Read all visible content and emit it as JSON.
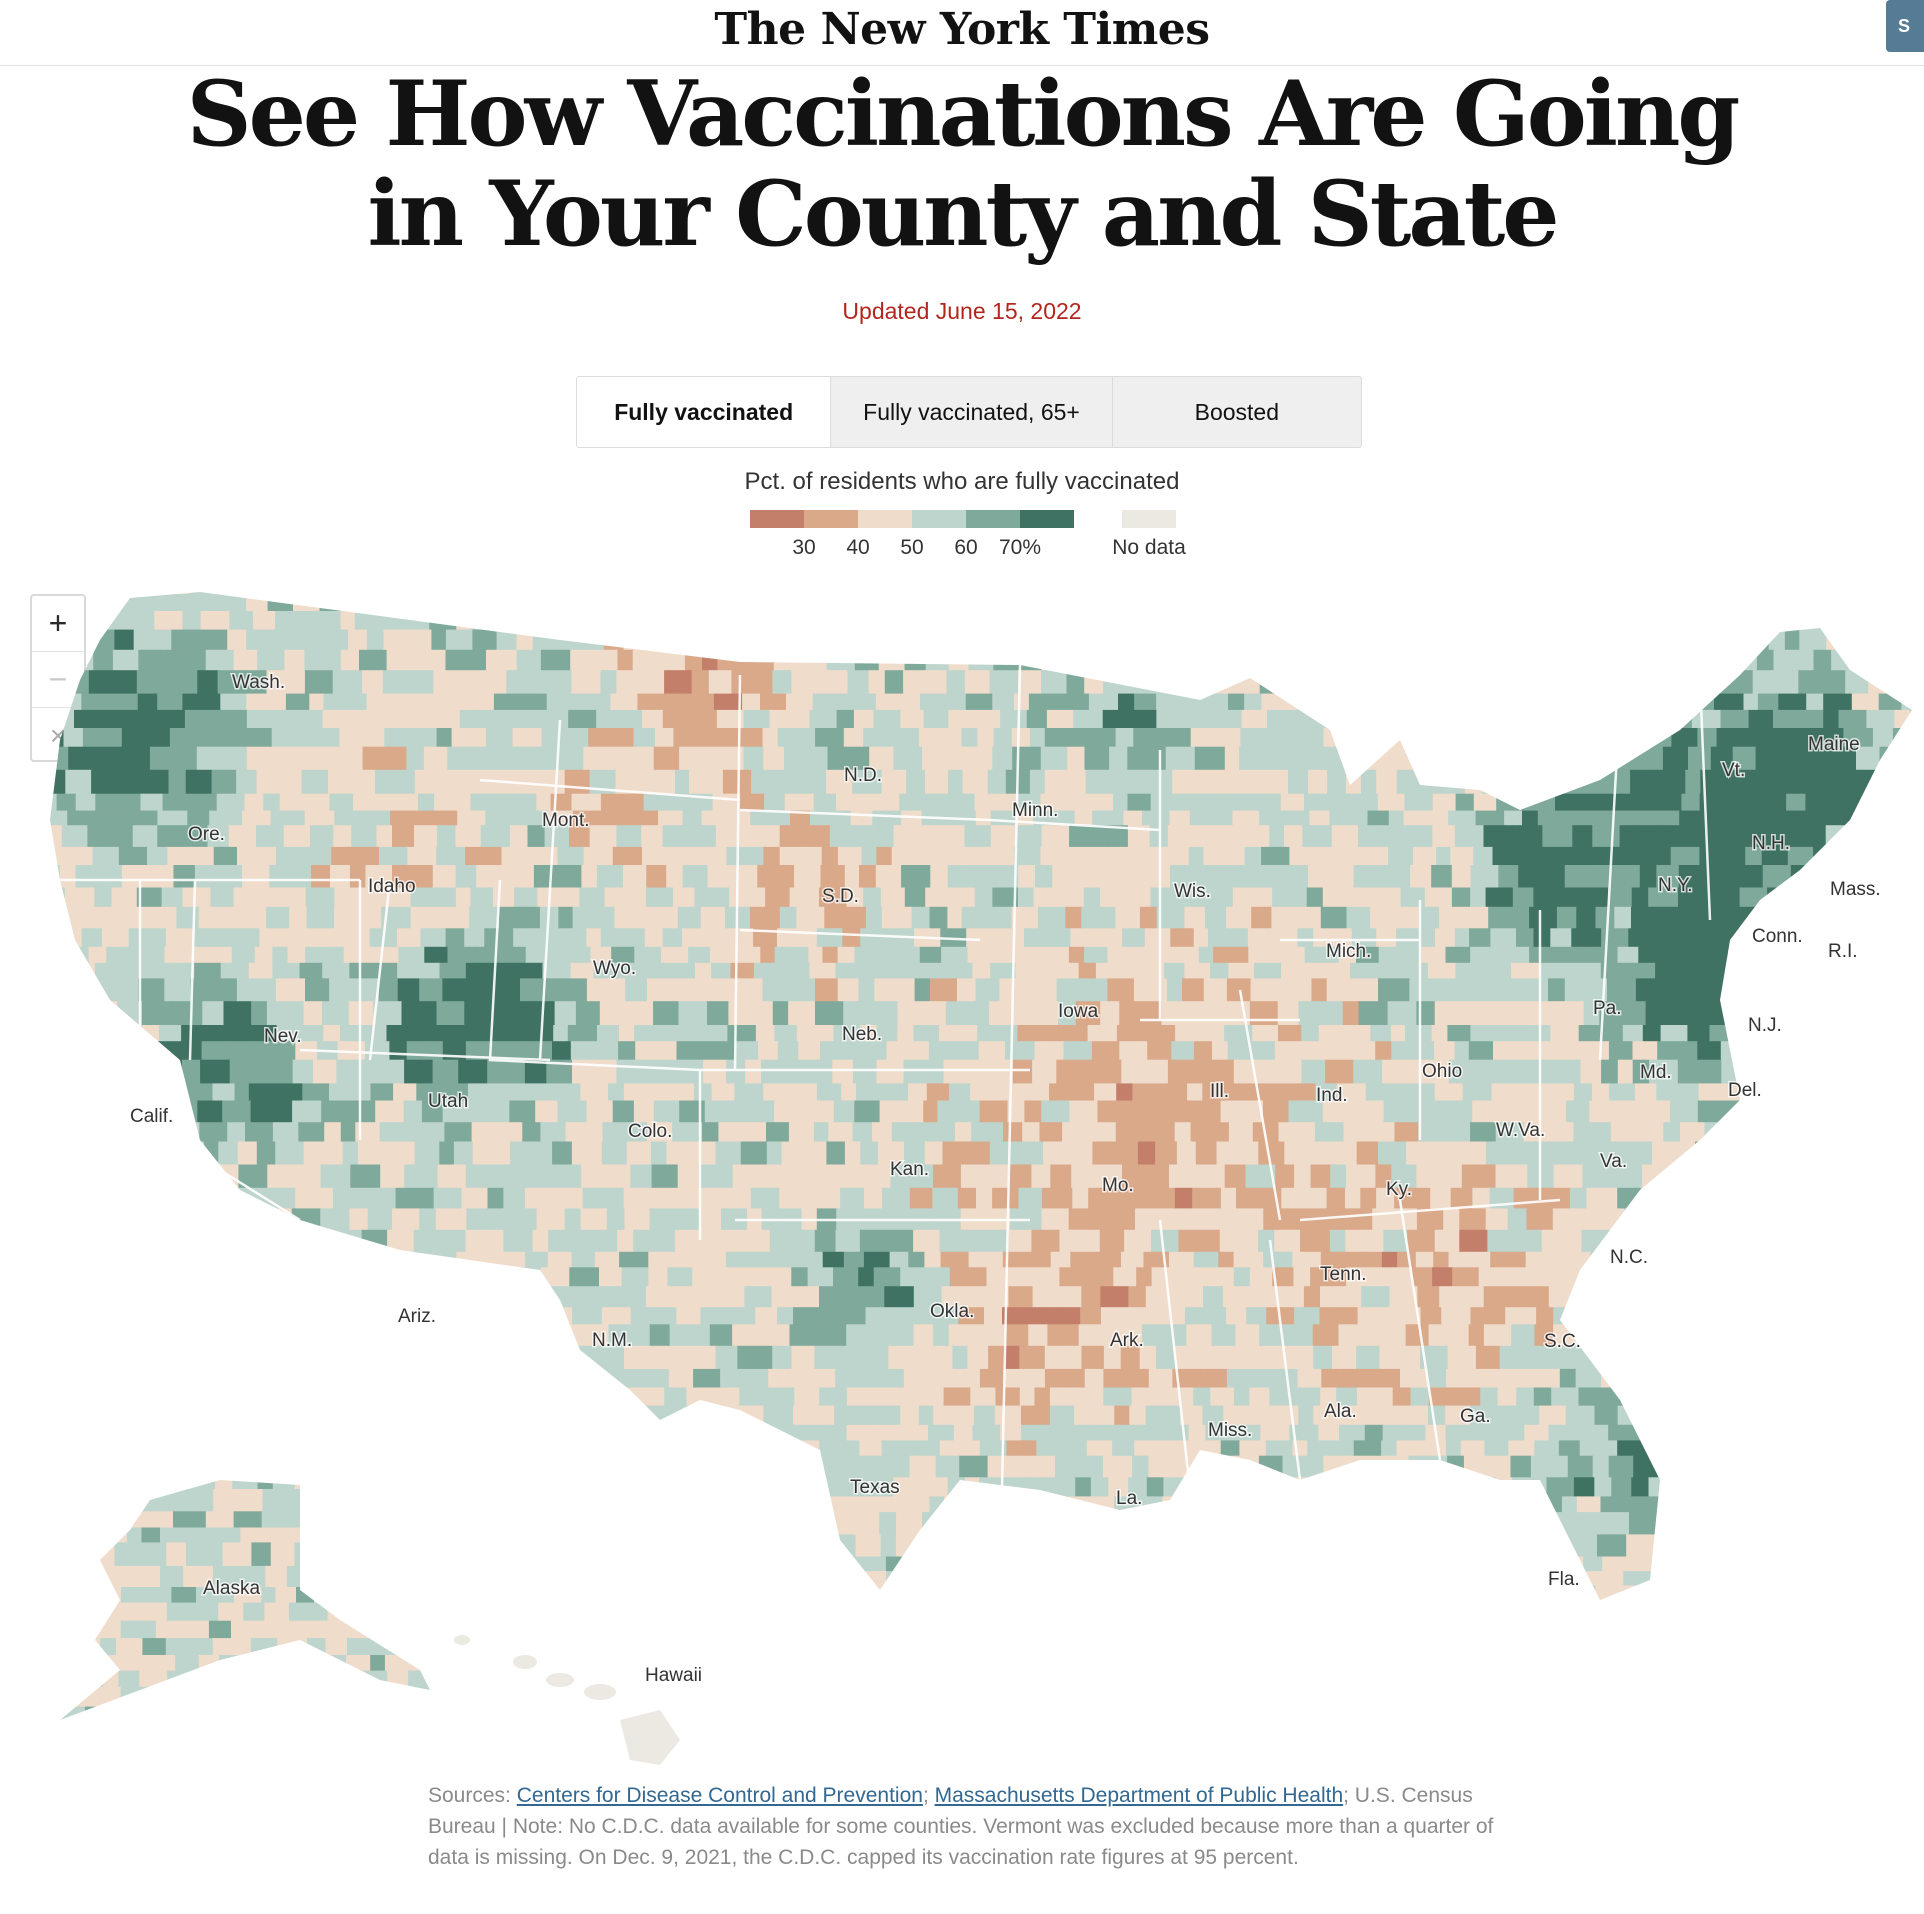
{
  "masthead": {
    "logo": "The New York Times",
    "subscribe_label": "S"
  },
  "headline": "See How Vaccinations Are Going in Your County and State",
  "updated": "Updated June 15, 2022",
  "tabs": [
    {
      "label": "Fully vaccinated",
      "active": true
    },
    {
      "label": "Fully vaccinated, 65+",
      "active": false
    },
    {
      "label": "Boosted",
      "active": false
    }
  ],
  "legend": {
    "title": "Pct. of residents who are fully vaccinated",
    "colors": [
      "#c47f6b",
      "#d9a98a",
      "#f0dccb",
      "#bdd5cc",
      "#7fa99a",
      "#3f7262"
    ],
    "ticks": [
      "30",
      "40",
      "50",
      "60",
      "70%"
    ],
    "no_data_label": "No data",
    "no_data_color": "#ece9e2"
  },
  "zoom": {
    "in_label": "+",
    "out_label": "−",
    "reset_label": "×"
  },
  "map": {
    "state_labels": [
      "Wash.",
      "Ore.",
      "Calif.",
      "Nev.",
      "Idaho",
      "Mont.",
      "Wyo.",
      "Utah",
      "Ariz.",
      "Colo.",
      "N.M.",
      "N.D.",
      "S.D.",
      "Neb.",
      "Kan.",
      "Okla.",
      "Texas",
      "Minn.",
      "Iowa",
      "Mo.",
      "Ark.",
      "La.",
      "Wis.",
      "Ill.",
      "Mich.",
      "Ind.",
      "Ohio",
      "Ky.",
      "Tenn.",
      "Miss.",
      "Ala.",
      "Ga.",
      "Fla.",
      "S.C.",
      "N.C.",
      "Va.",
      "W.Va.",
      "Pa.",
      "N.Y.",
      "Vt.",
      "N.H.",
      "Maine",
      "Mass.",
      "R.I.",
      "Conn.",
      "N.J.",
      "Del.",
      "Md.",
      "Alaska",
      "Hawaii"
    ]
  },
  "sources": {
    "prefix": "Sources: ",
    "link1": "Centers for Disease Control and Prevention",
    "sep": "; ",
    "link2": "Massachusetts Department of Public Health",
    "rest": "; U.S. Census Bureau | Note: No C.D.C. data available for some counties. Vermont was excluded because more than a quarter of data is missing. On Dec. 9, 2021, the C.D.C. capped its vaccination rate figures at 95 percent."
  }
}
